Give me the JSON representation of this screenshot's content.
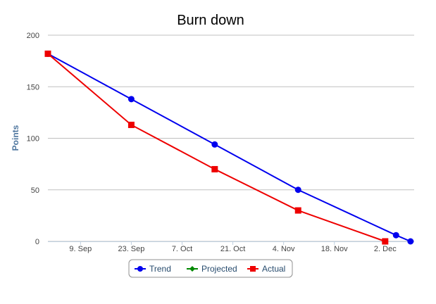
{
  "chart_data": {
    "type": "line",
    "title": "Burn down",
    "xlabel": "",
    "ylabel": "Points",
    "x_axis_type": "datetime",
    "x_tick_labels": [
      "9. Sep",
      "23. Sep",
      "7. Oct",
      "21. Oct",
      "4. Nov",
      "18. Nov",
      "2. Dec"
    ],
    "y_tick_labels": [
      "0",
      "50",
      "100",
      "150",
      "200"
    ],
    "ylim": [
      0,
      200
    ],
    "xlim": [
      "2013-08-31",
      "2013-12-10"
    ],
    "grid": "horizontal",
    "legend_placement": "bottom-center",
    "series": [
      {
        "name": "Trend",
        "color": "#0000ee",
        "marker": "circle",
        "points": [
          {
            "x": "2013-08-31",
            "y": 182
          },
          {
            "x": "2013-09-23",
            "y": 138
          },
          {
            "x": "2013-10-16",
            "y": 94
          },
          {
            "x": "2013-11-08",
            "y": 50
          },
          {
            "x": "2013-12-05",
            "y": 6
          },
          {
            "x": "2013-12-09",
            "y": 0
          }
        ]
      },
      {
        "name": "Projected",
        "color": "#008800",
        "marker": "diamond",
        "points": []
      },
      {
        "name": "Actual",
        "color": "#ee0000",
        "marker": "square",
        "points": [
          {
            "x": "2013-08-31",
            "y": 182
          },
          {
            "x": "2013-09-23",
            "y": 113
          },
          {
            "x": "2013-10-16",
            "y": 70
          },
          {
            "x": "2013-11-08",
            "y": 30
          },
          {
            "x": "2013-12-02",
            "y": 0
          }
        ]
      }
    ]
  }
}
